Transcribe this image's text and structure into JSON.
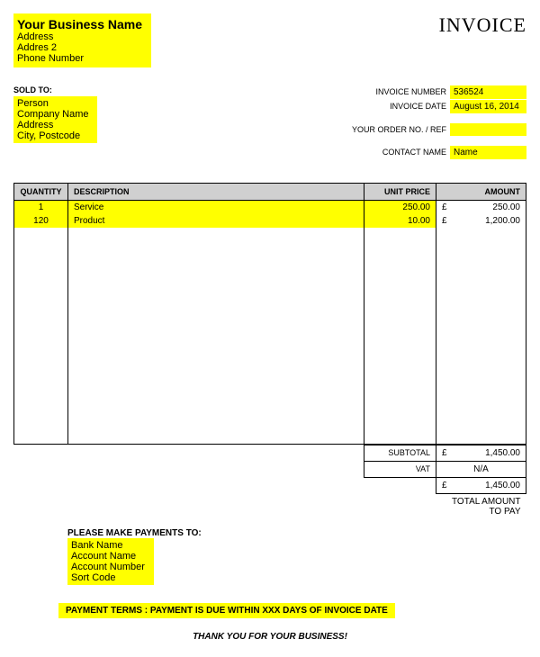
{
  "colors": {
    "highlight": "#ffff00",
    "table_header": "#d0d0d0",
    "border": "#000000",
    "background": "#ffffff"
  },
  "header": {
    "business_name": "Your Business Name",
    "address1": "Address",
    "address2": "Addres 2",
    "phone": "Phone Number",
    "invoice_title": "INVOICE"
  },
  "sold_to": {
    "label": "SOLD TO:",
    "person": "Person",
    "company": "Company Name",
    "address": "Address",
    "city_postcode": "City, Postcode"
  },
  "meta": {
    "invoice_number_label": "INVOICE NUMBER",
    "invoice_number": "536524",
    "invoice_date_label": "INVOICE DATE",
    "invoice_date": "August 16, 2014",
    "order_ref_label": "YOUR ORDER NO. / REF",
    "order_ref": "",
    "contact_label": "CONTACT NAME",
    "contact_name": "Name"
  },
  "table": {
    "headers": {
      "quantity": "QUANTITY",
      "description": "DESCRIPTION",
      "unit_price": "UNIT PRICE",
      "amount": "AMOUNT"
    },
    "rows": [
      {
        "quantity": "1",
        "description": "Service",
        "unit_price": "250.00",
        "currency": "£",
        "amount": "250.00"
      },
      {
        "quantity": "120",
        "description": "Product",
        "unit_price": "10.00",
        "currency": "£",
        "amount": "1,200.00"
      }
    ]
  },
  "totals": {
    "subtotal_label": "SUBTOTAL",
    "subtotal_currency": "£",
    "subtotal": "1,450.00",
    "vat_label": "VAT",
    "vat": "N/A",
    "grand_currency": "£",
    "grand": "1,450.00",
    "grand_note": "TOTAL AMOUNT\nTO PAY"
  },
  "payment": {
    "title": "PLEASE MAKE PAYMENTS TO:",
    "bank": "Bank Name",
    "account_name": "Account Name",
    "account_number": "Account Number",
    "sort_code": "Sort Code"
  },
  "terms": "PAYMENT TERMS : PAYMENT IS DUE WITHIN XXX DAYS OF INVOICE DATE",
  "thanks": "THANK YOU FOR YOUR BUSINESS!"
}
